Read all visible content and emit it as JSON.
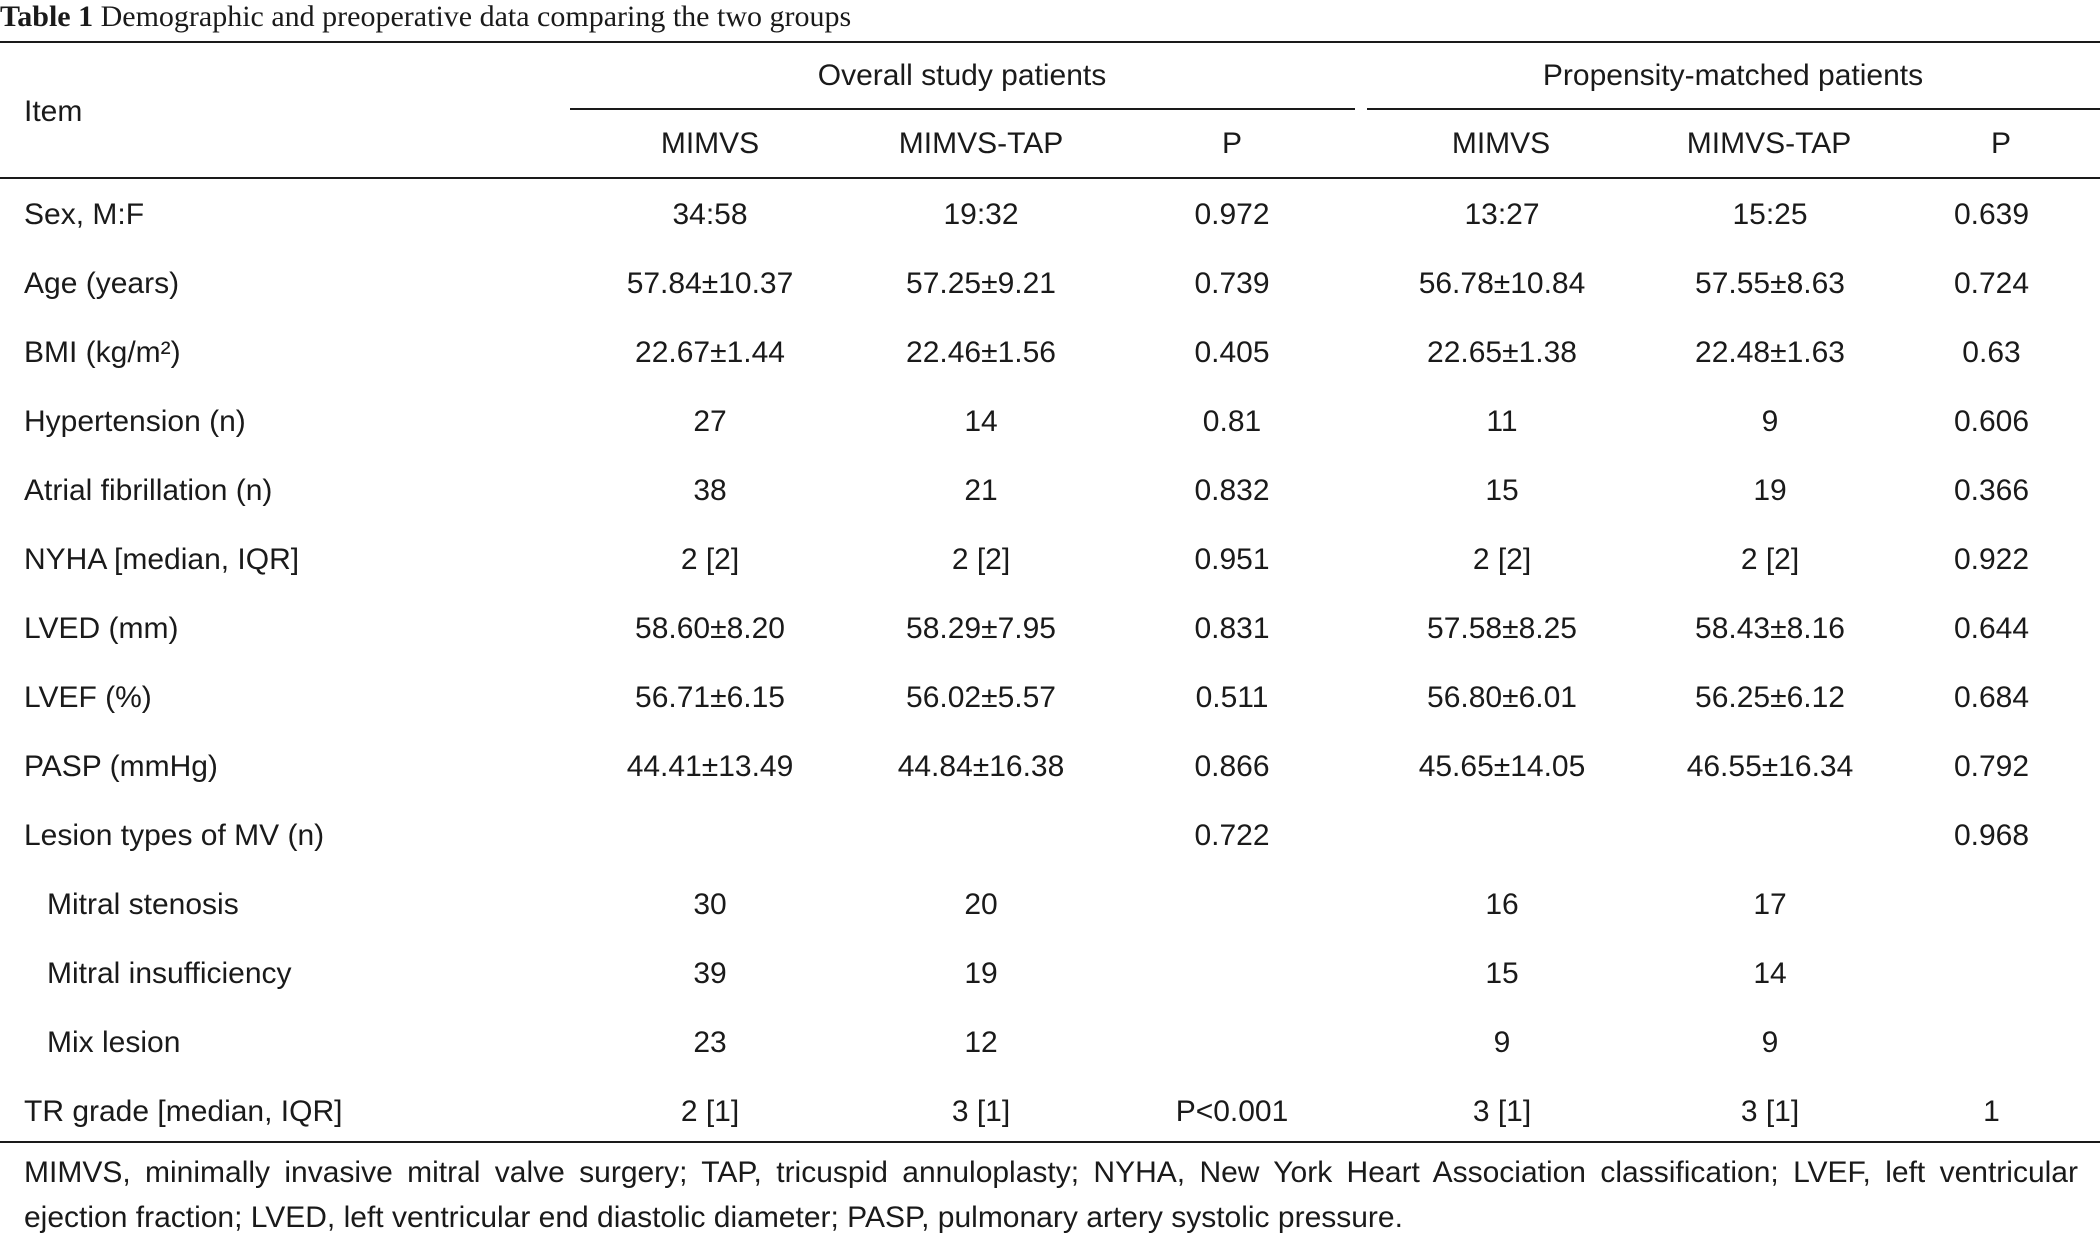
{
  "caption": {
    "label": "Table 1",
    "text": "Demographic and preoperative data comparing the two groups"
  },
  "header": {
    "item": "Item",
    "group1": "Overall study patients",
    "group2": "Propensity-matched patients",
    "subcolumns": [
      "MIMVS",
      "MIMVS-TAP",
      "P",
      "MIMVS",
      "MIMVS-TAP",
      "P"
    ]
  },
  "rows": [
    {
      "label": "Sex, M:F",
      "indent": false,
      "cells": [
        "34:58",
        "19:32",
        "0.972",
        "13:27",
        "15:25",
        "0.639"
      ]
    },
    {
      "label": "Age (years)",
      "indent": false,
      "cells": [
        "57.84±10.37",
        "57.25±9.21",
        "0.739",
        "56.78±10.84",
        "57.55±8.63",
        "0.724"
      ]
    },
    {
      "label": "BMI (kg/m²)",
      "indent": false,
      "cells": [
        "22.67±1.44",
        "22.46±1.56",
        "0.405",
        "22.65±1.38",
        "22.48±1.63",
        "0.63"
      ]
    },
    {
      "label": "Hypertension (n)",
      "indent": false,
      "cells": [
        "27",
        "14",
        "0.81",
        "11",
        "9",
        "0.606"
      ]
    },
    {
      "label": "Atrial fibrillation (n)",
      "indent": false,
      "cells": [
        "38",
        "21",
        "0.832",
        "15",
        "19",
        "0.366"
      ]
    },
    {
      "label": "NYHA [median, IQR]",
      "indent": false,
      "cells": [
        "2 [2]",
        "2 [2]",
        "0.951",
        "2 [2]",
        "2 [2]",
        "0.922"
      ]
    },
    {
      "label": "LVED (mm)",
      "indent": false,
      "cells": [
        "58.60±8.20",
        "58.29±7.95",
        "0.831",
        "57.58±8.25",
        "58.43±8.16",
        "0.644"
      ]
    },
    {
      "label": "LVEF (%)",
      "indent": false,
      "cells": [
        "56.71±6.15",
        "56.02±5.57",
        "0.511",
        "56.80±6.01",
        "56.25±6.12",
        "0.684"
      ]
    },
    {
      "label": "PASP (mmHg)",
      "indent": false,
      "cells": [
        "44.41±13.49",
        "44.84±16.38",
        "0.866",
        "45.65±14.05",
        "46.55±16.34",
        "0.792"
      ]
    },
    {
      "label": "Lesion types of MV (n)",
      "indent": false,
      "cells": [
        "",
        "",
        "0.722",
        "",
        "",
        "0.968"
      ]
    },
    {
      "label": "Mitral stenosis",
      "indent": true,
      "cells": [
        "30",
        "20",
        "",
        "16",
        "17",
        ""
      ]
    },
    {
      "label": "Mitral insufficiency",
      "indent": true,
      "cells": [
        "39",
        "19",
        "",
        "15",
        "14",
        ""
      ]
    },
    {
      "label": "Mix lesion",
      "indent": true,
      "cells": [
        "23",
        "12",
        "",
        "9",
        "9",
        ""
      ]
    },
    {
      "label": "TR grade [median, IQR]",
      "indent": false,
      "cells": [
        "2 [1]",
        "3 [1]",
        "P<0.001",
        "3 [1]",
        "3 [1]",
        "1"
      ]
    }
  ],
  "footnote": "MIMVS, minimally invasive mitral valve surgery; TAP, tricuspid annuloplasty; NYHA, New York Heart Association classification; LVEF, left ventricular ejection fraction; LVED, left ventricular end diastolic diameter; PASP, pulmonary artery systolic pressure."
}
